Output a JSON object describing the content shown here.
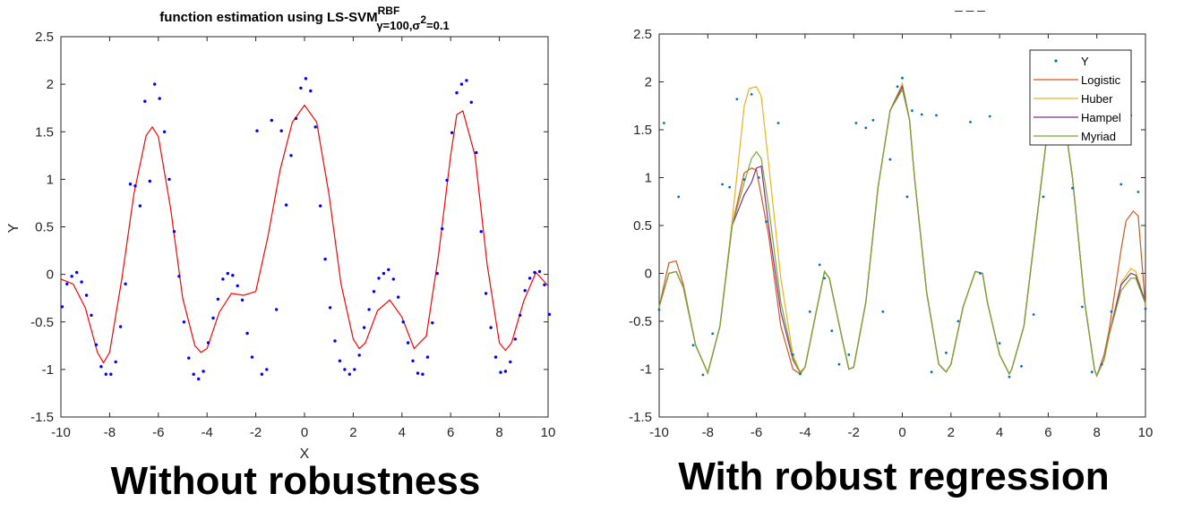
{
  "panels": [
    {
      "title": {
        "main": "function estimation using  LS-SVM",
        "sup": "RBF",
        "sub_gamma": "γ=100,σ",
        "sub_sigma_exp": "2",
        "sub_rest": "=0.1"
      },
      "caption": "Without robustness",
      "xlabel": "X",
      "ylabel": "Y"
    },
    {
      "title_fragment": "_ _ _",
      "caption": "With robust regression"
    }
  ],
  "colors": {
    "points_left": "#0000ff",
    "fit_left": "#ff0000",
    "points_right": "#0072bd",
    "Logistic": "#d95319",
    "Huber": "#edb120",
    "Hampel": "#7e2f8e",
    "Myriad": "#77ac30"
  },
  "chart_data": [
    {
      "type": "scatter",
      "title": "function estimation using  LS-SVM RBF γ=100,σ2=0.1",
      "xlabel": "X",
      "ylabel": "Y",
      "xlim": [
        -10,
        10
      ],
      "ylim": [
        -1.5,
        2.5
      ],
      "xticks": [
        -10,
        -8,
        -6,
        -4,
        -2,
        0,
        2,
        4,
        6,
        8,
        10
      ],
      "xtick_labels": [
        "-10",
        "-8",
        "-6",
        "-4",
        "-2",
        "0",
        "2",
        "4",
        "6",
        "8",
        "10"
      ],
      "yticks": [
        -1.5,
        -1,
        -0.5,
        0,
        0.5,
        1,
        1.5,
        2,
        2.5
      ],
      "ytick_labels": [
        "-1.5",
        "-1",
        "-0.5",
        "0",
        "0.5",
        "1",
        "1.5",
        "2",
        "2.5"
      ],
      "grid": false,
      "series": [
        {
          "kind": "points",
          "color": "#0000ff",
          "x": [
            -9.95,
            -9.75,
            -9.55,
            -9.35,
            -9.15,
            -8.95,
            -8.75,
            -8.55,
            -8.35,
            -8.15,
            -7.95,
            -7.75,
            -7.55,
            -7.35,
            -7.15,
            -6.95,
            -6.75,
            -6.55,
            -6.35,
            -6.15,
            -5.95,
            -5.75,
            -5.55,
            -5.35,
            -5.15,
            -4.95,
            -4.75,
            -4.55,
            -4.35,
            -4.15,
            -3.95,
            -3.75,
            -3.55,
            -3.35,
            -3.15,
            -2.95,
            -2.75,
            -2.55,
            -2.35,
            -2.15,
            -1.95,
            -1.75,
            -1.55,
            -1.35,
            -1.15,
            -0.95,
            -0.75,
            -0.55,
            -0.35,
            -0.15,
            0.05,
            0.25,
            0.45,
            0.65,
            0.85,
            1.05,
            1.25,
            1.45,
            1.65,
            1.85,
            2.05,
            2.25,
            2.45,
            2.65,
            2.85,
            3.05,
            3.25,
            3.45,
            3.65,
            3.85,
            4.05,
            4.25,
            4.45,
            4.65,
            4.85,
            5.05,
            5.25,
            5.45,
            5.65,
            5.85,
            6.05,
            6.25,
            6.45,
            6.65,
            6.85,
            7.05,
            7.25,
            7.45,
            7.65,
            7.85,
            8.05,
            8.25,
            8.45,
            8.65,
            8.85,
            9.05,
            9.25,
            9.45,
            9.65,
            9.85,
            10.05
          ],
          "y": [
            -0.34,
            -0.1,
            -0.02,
            0.02,
            -0.08,
            -0.22,
            -0.43,
            -0.74,
            -0.97,
            -1.05,
            -1.05,
            -0.92,
            -0.55,
            -0.1,
            0.95,
            0.93,
            0.72,
            1.82,
            0.98,
            2.0,
            1.85,
            1.5,
            1.0,
            0.45,
            -0.02,
            -0.5,
            -0.88,
            -1.05,
            -1.1,
            -1.02,
            -0.72,
            -0.46,
            -0.26,
            -0.05,
            0.01,
            -0.01,
            -0.12,
            -0.27,
            -0.62,
            -0.87,
            1.51,
            -1.05,
            -1.0,
            1.62,
            -0.37,
            1.51,
            0.73,
            1.25,
            1.64,
            1.96,
            2.06,
            1.93,
            1.55,
            0.72,
            0.16,
            -0.35,
            -0.7,
            -0.91,
            -1.0,
            -1.05,
            -1.0,
            -0.85,
            -0.56,
            -0.37,
            -0.18,
            -0.04,
            0.01,
            0.05,
            -0.05,
            -0.24,
            -0.5,
            -0.72,
            -0.91,
            -1.04,
            -1.05,
            -0.87,
            -0.51,
            0.01,
            0.48,
            0.99,
            1.49,
            1.91,
            2.0,
            2.04,
            1.81,
            1.28,
            0.45,
            -0.2,
            -0.56,
            -0.87,
            -1.03,
            -1.02,
            -0.92,
            -0.68,
            -0.43,
            -0.17,
            -0.04,
            0.02,
            0.03,
            -0.11,
            -0.42
          ]
        },
        {
          "kind": "line",
          "color": "#ff0000",
          "x": [
            -10,
            -9.5,
            -9,
            -8.5,
            -8.25,
            -8,
            -7.5,
            -7,
            -6.5,
            -6.25,
            -6,
            -5.5,
            -5,
            -4.5,
            -4.25,
            -4,
            -3.5,
            -3,
            -2.5,
            -2,
            -1.5,
            -1,
            -0.5,
            0,
            0.5,
            1,
            1.5,
            2,
            2.25,
            2.5,
            3,
            3.5,
            4,
            4.5,
            5,
            5.5,
            6,
            6.25,
            6.5,
            7,
            7.5,
            8,
            8.25,
            8.5,
            9,
            9.5,
            10
          ],
          "y": [
            -0.05,
            -0.1,
            -0.35,
            -0.82,
            -0.93,
            -0.82,
            -0.05,
            0.85,
            1.46,
            1.55,
            1.45,
            0.7,
            -0.25,
            -0.75,
            -0.82,
            -0.78,
            -0.4,
            -0.2,
            -0.22,
            -0.18,
            0.4,
            1.1,
            1.6,
            1.78,
            1.6,
            0.85,
            -0.1,
            -0.68,
            -0.78,
            -0.72,
            -0.38,
            -0.27,
            -0.45,
            -0.78,
            -0.65,
            0.2,
            1.25,
            1.68,
            1.72,
            1.25,
            0.1,
            -0.72,
            -0.8,
            -0.72,
            -0.28,
            0.02,
            -0.12
          ]
        }
      ]
    },
    {
      "type": "line",
      "xlim": [
        -10,
        10
      ],
      "ylim": [
        -1.5,
        2.5
      ],
      "xticks": [
        -10,
        -8,
        -6,
        -4,
        -2,
        0,
        2,
        4,
        6,
        8,
        10
      ],
      "xtick_labels": [
        "-10",
        "-8",
        "-6",
        "-4",
        "-2",
        "0",
        "2",
        "4",
        "6",
        "8",
        "10"
      ],
      "yticks": [
        -1.5,
        -1,
        -0.5,
        0,
        0.5,
        1,
        1.5,
        2,
        2.5
      ],
      "ytick_labels": [
        "-1.5",
        "-1",
        "-0.5",
        "0",
        "0.5",
        "1",
        "1.5",
        "2",
        "2.5"
      ],
      "grid": false,
      "legend": "top-right",
      "series": [
        {
          "name": "Y",
          "kind": "points",
          "color": "#0072bd",
          "x": [
            -10,
            -9.8,
            -9.2,
            -8.6,
            -8.2,
            -7.8,
            -7.4,
            -7.1,
            -6.8,
            -6.5,
            -6.2,
            -5.9,
            -5.6,
            -5.1,
            -4.5,
            -4.2,
            -3.8,
            -3.4,
            -3.2,
            -2.9,
            -2.6,
            -2.2,
            -1.9,
            -1.5,
            -1.2,
            -0.8,
            -0.5,
            -0.2,
            0,
            0.2,
            0.4,
            0.8,
            1.2,
            1.4,
            1.8,
            2.3,
            2.8,
            3.2,
            3.6,
            4.0,
            4.4,
            4.9,
            5.4,
            5.8,
            6.2,
            6.6,
            7.0,
            7.4,
            7.8,
            8.2,
            8.6,
            9.0,
            9.4,
            9.7,
            10
          ],
          "y": [
            -0.38,
            1.57,
            0.8,
            -0.75,
            -1.06,
            -0.63,
            0.93,
            0.9,
            1.82,
            0.98,
            1.87,
            1.0,
            0.54,
            1.57,
            -0.85,
            -1.05,
            -0.4,
            0.09,
            -0.05,
            -0.6,
            -0.95,
            -0.85,
            1.57,
            1.52,
            1.6,
            -0.4,
            1.19,
            1.95,
            2.04,
            0.8,
            1.7,
            1.66,
            -1.03,
            1.65,
            -0.83,
            -0.5,
            1.58,
            0.0,
            1.64,
            -0.73,
            -1.08,
            -0.97,
            -0.43,
            0.8,
            1.67,
            2.0,
            0.89,
            -0.35,
            -1.03,
            -0.95,
            -0.4,
            0.93,
            1.65,
            0.85,
            -0.37
          ]
        },
        {
          "name": "Logistic",
          "kind": "line",
          "color": "#d95319",
          "x": [
            -10,
            -9.6,
            -9.3,
            -9,
            -8.5,
            -8,
            -7.5,
            -7,
            -6.5,
            -6.2,
            -6,
            -5.5,
            -5,
            -4.5,
            -4.2,
            -4,
            -3.5,
            -3.2,
            -3,
            -2.5,
            -2.2,
            -2,
            -1.5,
            -1,
            -0.5,
            0,
            0.3,
            0.5,
            1,
            1.5,
            1.8,
            2,
            2.5,
            3,
            3.3,
            3.5,
            4,
            4.4,
            4.5,
            5,
            5.5,
            6,
            6.3,
            6.5,
            7,
            7.5,
            7.9,
            8,
            8.3,
            8.5,
            9,
            9.2,
            9.5,
            9.7,
            10
          ],
          "y": [
            -0.35,
            0.11,
            0.13,
            -0.12,
            -0.75,
            -1.04,
            -0.55,
            0.5,
            1.05,
            1.1,
            1.08,
            0.4,
            -0.55,
            -1.0,
            -1.05,
            -0.98,
            -0.35,
            0.02,
            -0.05,
            -0.65,
            -1.0,
            -0.98,
            -0.3,
            0.9,
            1.7,
            1.98,
            1.6,
            1.0,
            -0.2,
            -0.95,
            -1.03,
            -0.95,
            -0.35,
            0.02,
            0.0,
            -0.3,
            -0.85,
            -1.05,
            -1.0,
            -0.55,
            0.5,
            1.55,
            1.95,
            1.9,
            1.0,
            -0.3,
            -1.0,
            -1.07,
            -0.85,
            -0.6,
            0.25,
            0.55,
            0.65,
            0.6,
            -0.35
          ]
        },
        {
          "name": "Huber",
          "kind": "line",
          "color": "#edb120",
          "x": [
            -10,
            -9.6,
            -9.3,
            -9,
            -8.5,
            -8,
            -7.5,
            -7,
            -6.5,
            -6.3,
            -6,
            -5.8,
            -5.5,
            -5,
            -4.5,
            -4.2,
            -4,
            -3.5,
            -3.2,
            -3,
            -2.5,
            -2.2,
            -2,
            -1.5,
            -1,
            -0.5,
            0,
            0.3,
            0.5,
            1,
            1.5,
            1.8,
            2,
            2.5,
            3,
            3.3,
            3.5,
            4,
            4.4,
            4.5,
            5,
            5.5,
            6,
            6.3,
            6.5,
            7,
            7.5,
            7.9,
            8,
            8.3,
            8.5,
            9,
            9.4,
            9.6,
            10
          ],
          "y": [
            -0.35,
            0.0,
            0.02,
            -0.15,
            -0.75,
            -1.04,
            -0.55,
            0.55,
            1.75,
            1.93,
            1.95,
            1.85,
            1.15,
            -0.05,
            -0.85,
            -1.03,
            -0.98,
            -0.35,
            0.02,
            -0.05,
            -0.65,
            -1.0,
            -0.98,
            -0.3,
            0.9,
            1.7,
            1.98,
            1.6,
            1.0,
            -0.2,
            -0.95,
            -1.03,
            -0.95,
            -0.35,
            0.02,
            0.0,
            -0.3,
            -0.85,
            -1.05,
            -1.0,
            -0.55,
            0.5,
            1.55,
            1.95,
            1.9,
            1.0,
            -0.3,
            -1.0,
            -1.07,
            -0.9,
            -0.65,
            -0.1,
            0.05,
            0.02,
            -0.3
          ]
        },
        {
          "name": "Hampel",
          "kind": "line",
          "color": "#7e2f8e",
          "x": [
            -10,
            -9.6,
            -9.3,
            -9,
            -8.5,
            -8,
            -7.5,
            -7,
            -6.5,
            -6.2,
            -6,
            -5.8,
            -5.5,
            -5,
            -4.5,
            -4.2,
            -4,
            -3.5,
            -3.2,
            -3,
            -2.5,
            -2.2,
            -2,
            -1.5,
            -1,
            -0.5,
            0,
            0.3,
            0.5,
            1,
            1.5,
            1.8,
            2,
            2.5,
            3,
            3.3,
            3.5,
            4,
            4.4,
            4.5,
            5,
            5.5,
            6,
            6.3,
            6.5,
            7,
            7.5,
            7.9,
            8,
            8.3,
            8.5,
            9,
            9.4,
            9.6,
            10
          ],
          "y": [
            -0.35,
            0.0,
            0.02,
            -0.15,
            -0.75,
            -1.04,
            -0.55,
            0.5,
            0.82,
            0.95,
            1.1,
            1.12,
            0.5,
            -0.4,
            -0.9,
            -1.04,
            -0.98,
            -0.35,
            0.02,
            -0.05,
            -0.65,
            -1.0,
            -0.98,
            -0.3,
            0.9,
            1.7,
            1.95,
            1.6,
            1.0,
            -0.2,
            -0.95,
            -1.03,
            -0.95,
            -0.35,
            0.02,
            0.0,
            -0.3,
            -0.85,
            -1.05,
            -1.0,
            -0.55,
            0.5,
            1.55,
            1.95,
            1.9,
            1.0,
            -0.3,
            -1.0,
            -1.07,
            -0.9,
            -0.65,
            -0.12,
            0.0,
            -0.02,
            -0.3
          ]
        },
        {
          "name": "Myriad",
          "kind": "line",
          "color": "#77ac30",
          "x": [
            -10,
            -9.6,
            -9.3,
            -9,
            -8.5,
            -8,
            -7.5,
            -7,
            -6.5,
            -6.2,
            -6,
            -5.8,
            -5.5,
            -5,
            -4.5,
            -4.2,
            -4,
            -3.5,
            -3.2,
            -3,
            -2.5,
            -2.2,
            -2,
            -1.5,
            -1,
            -0.5,
            0,
            0.3,
            0.5,
            1,
            1.5,
            1.8,
            2,
            2.5,
            3,
            3.3,
            3.5,
            4,
            4.4,
            4.5,
            5,
            5.5,
            6,
            6.3,
            6.5,
            7,
            7.5,
            7.9,
            8,
            8.3,
            8.5,
            9,
            9.4,
            9.6,
            10
          ],
          "y": [
            -0.35,
            0.0,
            0.02,
            -0.15,
            -0.75,
            -1.04,
            -0.55,
            0.5,
            0.95,
            1.2,
            1.27,
            1.2,
            0.7,
            -0.3,
            -0.88,
            -1.04,
            -0.98,
            -0.35,
            0.02,
            -0.05,
            -0.65,
            -1.0,
            -0.98,
            -0.3,
            0.9,
            1.7,
            1.92,
            1.6,
            1.0,
            -0.2,
            -0.95,
            -1.03,
            -0.95,
            -0.35,
            0.02,
            0.0,
            -0.3,
            -0.85,
            -1.05,
            -1.0,
            -0.55,
            0.5,
            1.55,
            1.95,
            1.9,
            1.0,
            -0.3,
            -1.0,
            -1.07,
            -0.9,
            -0.65,
            -0.18,
            -0.05,
            -0.05,
            -0.32
          ]
        }
      ]
    }
  ]
}
